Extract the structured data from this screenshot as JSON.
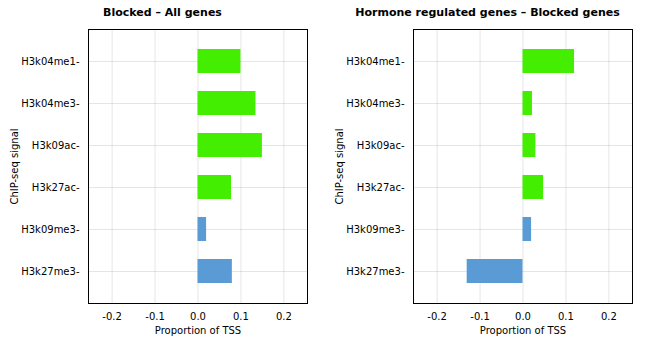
{
  "chart_data": [
    {
      "type": "bar",
      "orientation": "horizontal",
      "title": "Blocked – All genes",
      "xlabel": "Proportion of TSS",
      "ylabel": "ChIP-seq signal",
      "categories": [
        "H3k04me1-",
        "H3k04me3-",
        "H3k09ac-",
        "H3k27ac-",
        "H3k09me3-",
        "H3k27me3-"
      ],
      "values": [
        0.1,
        0.135,
        0.15,
        0.078,
        0.02,
        0.08
      ],
      "colors": [
        "#44ee00",
        "#44ee00",
        "#44ee00",
        "#44ee00",
        "#5b9bd5",
        "#5b9bd5"
      ],
      "xlim": [
        -0.255,
        0.255
      ],
      "xticks": [
        -0.2,
        -0.1,
        {
          "value": 0.0,
          "label": "0.0"
        },
        0.1,
        0.2
      ],
      "grid": true
    },
    {
      "type": "bar",
      "orientation": "horizontal",
      "title": "Hormone regulated genes – Blocked genes",
      "xlabel": "Proportion of TSS",
      "ylabel": "ChIP-seq signal",
      "categories": [
        "H3k04me1-",
        "H3k04me3-",
        "H3k09ac-",
        "H3k27ac-",
        "H3k09me3-",
        "H3k27me3-"
      ],
      "values": [
        0.12,
        0.022,
        0.03,
        0.048,
        0.02,
        -0.13
      ],
      "colors": [
        "#44ee00",
        "#44ee00",
        "#44ee00",
        "#44ee00",
        "#5b9bd5",
        "#5b9bd5"
      ],
      "xlim": [
        -0.255,
        0.255
      ],
      "xticks": [
        -0.2,
        -0.1,
        {
          "value": 0.0,
          "label": "0.0"
        },
        0.1,
        0.2
      ],
      "grid": true
    }
  ]
}
